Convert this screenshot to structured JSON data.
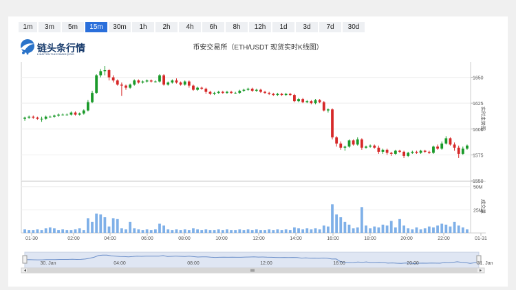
{
  "timeframes": [
    "1m",
    "3m",
    "5m",
    "15m",
    "30m",
    "1h",
    "2h",
    "4h",
    "6h",
    "8h",
    "12h",
    "1d",
    "3d",
    "7d",
    "30d"
  ],
  "active_timeframe": "15m",
  "logo": {
    "name": "链头条行情",
    "sub": "LIANTOUTIAOHANGQING"
  },
  "colors": {
    "up": "#1a9a2a",
    "down": "#d62828",
    "volume": "#7fb0e8",
    "active_tab": "#2a6fdb"
  },
  "chart_data": {
    "type": "candlestick",
    "title": "币安交易所（ETH/USDT 现货实时K线图）",
    "price_axis_label": "实时走势图",
    "volume_axis_label": "成交量",
    "price_ylim": [
      1550,
      1665
    ],
    "price_ticks": [
      1650,
      1625,
      1600,
      1575,
      1550
    ],
    "volume_ylim": [
      0,
      55
    ],
    "volume_ticks": [
      "50M",
      "25M"
    ],
    "volume_tick_values": [
      50,
      25
    ],
    "x_tick_labels": [
      "01-30",
      "02:00",
      "04:00",
      "06:00",
      "08:00",
      "10:00",
      "12:00",
      "14:00",
      "16:00",
      "18:00",
      "20:00",
      "22:00",
      "01-31"
    ],
    "candles": [
      [
        1610,
        1611,
        1608,
        1612
      ],
      [
        1611,
        1612,
        1610,
        1613
      ],
      [
        1612,
        1611,
        1610,
        1613
      ],
      [
        1611,
        1610,
        1609,
        1612
      ],
      [
        1610,
        1610,
        1607,
        1612
      ],
      [
        1610,
        1612,
        1609,
        1613
      ],
      [
        1612,
        1612,
        1611,
        1613
      ],
      [
        1612,
        1613,
        1611,
        1614
      ],
      [
        1613,
        1614,
        1612,
        1615
      ],
      [
        1614,
        1614,
        1613,
        1615
      ],
      [
        1614,
        1614,
        1613,
        1615
      ],
      [
        1614,
        1616,
        1613,
        1617
      ],
      [
        1616,
        1614,
        1613,
        1617
      ],
      [
        1614,
        1615,
        1613,
        1616
      ],
      [
        1615,
        1618,
        1614,
        1619
      ],
      [
        1618,
        1626,
        1617,
        1628
      ],
      [
        1626,
        1635,
        1625,
        1637
      ],
      [
        1635,
        1652,
        1634,
        1653
      ],
      [
        1652,
        1656,
        1650,
        1658
      ],
      [
        1656,
        1657,
        1652,
        1661
      ],
      [
        1657,
        1650,
        1647,
        1658
      ],
      [
        1650,
        1647,
        1645,
        1652
      ],
      [
        1647,
        1643,
        1642,
        1648
      ],
      [
        1643,
        1642,
        1632,
        1645
      ],
      [
        1642,
        1640,
        1638,
        1643
      ],
      [
        1640,
        1643,
        1639,
        1644
      ],
      [
        1643,
        1647,
        1642,
        1648
      ],
      [
        1647,
        1645,
        1644,
        1648
      ],
      [
        1645,
        1646,
        1644,
        1647
      ],
      [
        1646,
        1647,
        1645,
        1648
      ],
      [
        1647,
        1646,
        1645,
        1648
      ],
      [
        1646,
        1646,
        1645,
        1647
      ],
      [
        1646,
        1652,
        1645,
        1653
      ],
      [
        1652,
        1643,
        1642,
        1653
      ],
      [
        1643,
        1645,
        1642,
        1646
      ],
      [
        1645,
        1647,
        1644,
        1648
      ],
      [
        1647,
        1645,
        1644,
        1649
      ],
      [
        1645,
        1643,
        1642,
        1646
      ],
      [
        1643,
        1646,
        1642,
        1647
      ],
      [
        1646,
        1642,
        1640,
        1647
      ],
      [
        1642,
        1638,
        1637,
        1643
      ],
      [
        1638,
        1640,
        1637,
        1641
      ],
      [
        1640,
        1639,
        1638,
        1641
      ],
      [
        1639,
        1636,
        1634,
        1640
      ],
      [
        1636,
        1634,
        1633,
        1637
      ],
      [
        1634,
        1635,
        1633,
        1636
      ],
      [
        1635,
        1636,
        1634,
        1637
      ],
      [
        1636,
        1635,
        1634,
        1637
      ],
      [
        1635,
        1636,
        1634,
        1637
      ],
      [
        1636,
        1635,
        1634,
        1637
      ],
      [
        1635,
        1635,
        1634,
        1636
      ],
      [
        1635,
        1637,
        1634,
        1638
      ],
      [
        1637,
        1638,
        1636,
        1639
      ],
      [
        1638,
        1639,
        1637,
        1640
      ],
      [
        1639,
        1637,
        1636,
        1640
      ],
      [
        1637,
        1638,
        1636,
        1639
      ],
      [
        1638,
        1636,
        1635,
        1639
      ],
      [
        1636,
        1635,
        1634,
        1637
      ],
      [
        1635,
        1634,
        1633,
        1636
      ],
      [
        1634,
        1633,
        1632,
        1635
      ],
      [
        1633,
        1634,
        1632,
        1635
      ],
      [
        1634,
        1633,
        1632,
        1635
      ],
      [
        1633,
        1634,
        1632,
        1635
      ],
      [
        1634,
        1633,
        1632,
        1635
      ],
      [
        1633,
        1627,
        1626,
        1634
      ],
      [
        1627,
        1629,
        1626,
        1630
      ],
      [
        1629,
        1626,
        1625,
        1630
      ],
      [
        1626,
        1627,
        1625,
        1628
      ],
      [
        1627,
        1625,
        1624,
        1628
      ],
      [
        1625,
        1628,
        1624,
        1629
      ],
      [
        1628,
        1626,
        1625,
        1629
      ],
      [
        1626,
        1618,
        1617,
        1627
      ],
      [
        1618,
        1619,
        1616,
        1620
      ],
      [
        1619,
        1592,
        1590,
        1620
      ],
      [
        1592,
        1586,
        1583,
        1593
      ],
      [
        1586,
        1582,
        1580,
        1588
      ],
      [
        1582,
        1583,
        1579,
        1584
      ],
      [
        1583,
        1589,
        1582,
        1590
      ],
      [
        1589,
        1585,
        1584,
        1590
      ],
      [
        1585,
        1590,
        1584,
        1592
      ],
      [
        1590,
        1582,
        1580,
        1591
      ],
      [
        1582,
        1583,
        1581,
        1584
      ],
      [
        1583,
        1584,
        1582,
        1585
      ],
      [
        1584,
        1582,
        1581,
        1585
      ],
      [
        1582,
        1578,
        1576,
        1584
      ],
      [
        1578,
        1580,
        1576,
        1581
      ],
      [
        1580,
        1577,
        1575,
        1581
      ],
      [
        1577,
        1576,
        1574,
        1578
      ],
      [
        1576,
        1579,
        1575,
        1580
      ],
      [
        1579,
        1578,
        1577,
        1580
      ],
      [
        1578,
        1574,
        1572,
        1579
      ],
      [
        1574,
        1577,
        1573,
        1578
      ],
      [
        1577,
        1578,
        1576,
        1579
      ],
      [
        1578,
        1577,
        1576,
        1579
      ],
      [
        1577,
        1579,
        1576,
        1580
      ],
      [
        1579,
        1578,
        1577,
        1580
      ],
      [
        1578,
        1577,
        1576,
        1579
      ],
      [
        1577,
        1583,
        1576,
        1584
      ],
      [
        1583,
        1581,
        1580,
        1585
      ],
      [
        1581,
        1586,
        1580,
        1588
      ],
      [
        1586,
        1591,
        1585,
        1593
      ],
      [
        1591,
        1585,
        1584,
        1592
      ],
      [
        1585,
        1582,
        1579,
        1587
      ],
      [
        1582,
        1576,
        1572,
        1584
      ],
      [
        1576,
        1581,
        1575,
        1583
      ],
      [
        1581,
        1584,
        1580,
        1585
      ]
    ],
    "volumes": [
      4,
      3,
      3,
      4,
      3,
      5,
      6,
      5,
      3,
      4,
      3,
      3,
      4,
      5,
      3,
      16,
      12,
      21,
      20,
      17,
      7,
      16,
      15,
      5,
      4,
      12,
      5,
      4,
      3,
      4,
      3,
      4,
      10,
      8,
      4,
      3,
      4,
      3,
      4,
      3,
      5,
      4,
      3,
      4,
      3,
      3,
      4,
      3,
      4,
      3,
      3,
      4,
      3,
      4,
      3,
      4,
      3,
      3,
      4,
      3,
      4,
      3,
      4,
      3,
      6,
      5,
      4,
      5,
      4,
      5,
      4,
      8,
      7,
      31,
      20,
      17,
      12,
      9,
      5,
      6,
      28,
      8,
      5,
      7,
      6,
      9,
      8,
      13,
      6,
      15,
      8,
      5,
      4,
      6,
      4,
      5,
      7,
      6,
      8,
      10,
      9,
      7,
      12,
      8,
      6,
      4
    ],
    "navigator": {
      "labels": [
        "30. Jan",
        "04:00",
        "08:00",
        "12:00",
        "16:00",
        "20:00",
        "31. Jan"
      ]
    }
  }
}
